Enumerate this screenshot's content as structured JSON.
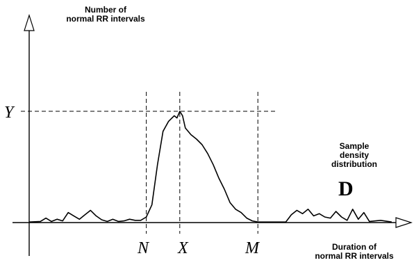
{
  "chart_data": {
    "type": "line",
    "ylabel_lines": [
      "Number of",
      "normal RR intervals"
    ],
    "xlabel_lines": [
      "Duration of",
      "normal RR intervals"
    ],
    "annotation_lines": [
      "Sample",
      "density",
      "distribution"
    ],
    "panel_label": "D",
    "tick_labels": {
      "y": "Y",
      "n": "N",
      "x": "X",
      "m": "M"
    },
    "ticks": {
      "n": 21,
      "x": 27,
      "m": 41
    },
    "ylim": [
      0,
      10
    ],
    "xlim": [
      0,
      67
    ],
    "peak": {
      "x": 27,
      "y": 10
    },
    "grid": false,
    "legend": "none",
    "series": [
      {
        "x": [
          0,
          2,
          3,
          4,
          5,
          6,
          7,
          8,
          9,
          10,
          11,
          12,
          13,
          14,
          15,
          16,
          17,
          18,
          19,
          20,
          21,
          22,
          23,
          24,
          25,
          26,
          26.5,
          27,
          27.5,
          28,
          29,
          30,
          31,
          32,
          33,
          34,
          35,
          36,
          37,
          38,
          39,
          40,
          41,
          42,
          43,
          44,
          45,
          46,
          47,
          48,
          49,
          50,
          51,
          52,
          53,
          54,
          55,
          56,
          57,
          58,
          59,
          60,
          61,
          63,
          65
        ],
        "y": [
          0.05,
          0.1,
          0.4,
          0.1,
          0.3,
          0.15,
          0.9,
          0.6,
          0.3,
          0.7,
          1.1,
          0.6,
          0.25,
          0.1,
          0.3,
          0.1,
          0.15,
          0.3,
          0.2,
          0.2,
          0.5,
          1.6,
          5.2,
          8.2,
          9.1,
          9.6,
          9.4,
          10.0,
          9.6,
          8.5,
          7.9,
          7.5,
          7.0,
          6.2,
          5.2,
          4.0,
          3.0,
          1.8,
          1.2,
          0.9,
          0.4,
          0.15,
          0.05,
          0.05,
          0.05,
          0.05,
          0.05,
          0.05,
          0.7,
          1.1,
          0.8,
          1.2,
          0.6,
          0.8,
          0.5,
          0.4,
          1.0,
          0.5,
          0.2,
          1.2,
          0.3,
          0.9,
          0.1,
          0.2,
          0.05
        ]
      }
    ]
  }
}
